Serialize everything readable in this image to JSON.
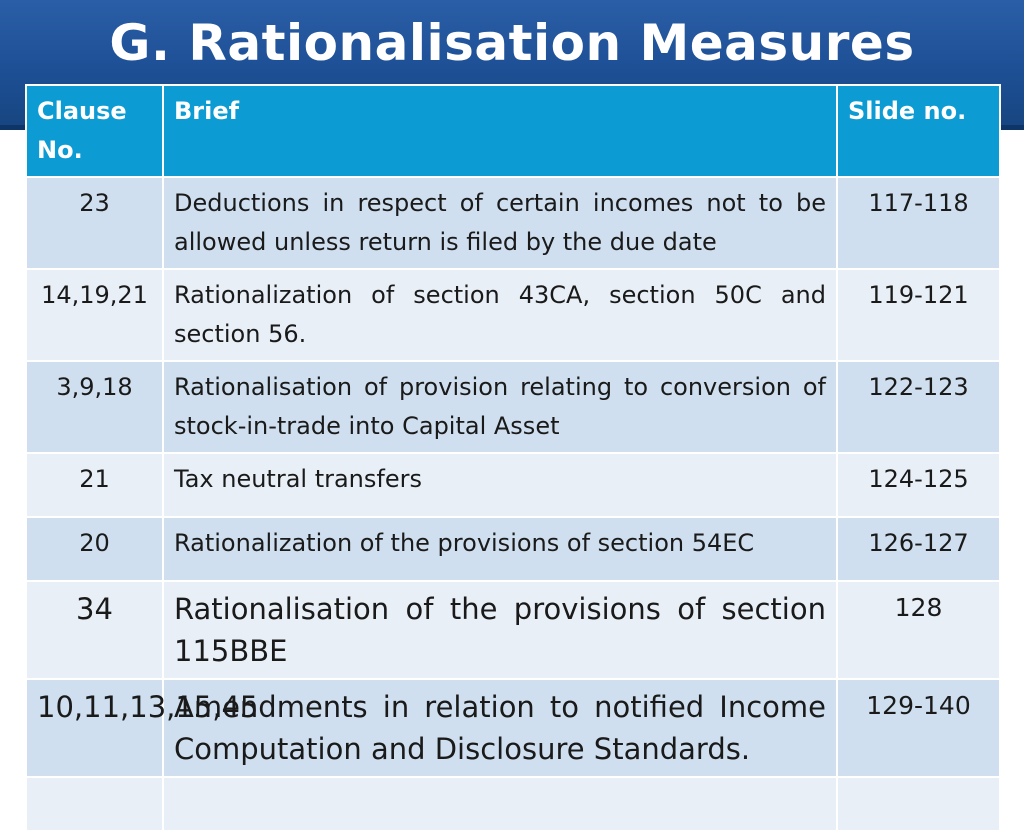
{
  "slide": {
    "title": "G. Rationalisation Measures"
  },
  "table": {
    "headers": {
      "clause": "Clause No.",
      "brief": "Brief",
      "slide": "Slide no."
    },
    "rows": [
      {
        "clause": "23",
        "brief": "Deductions in respect of certain incomes not to be allowed unless return is filed by the due date",
        "slide": "117-118"
      },
      {
        "clause": "14,19,21",
        "brief": "Rationalization of section 43CA, section 50C and section 56.",
        "slide": "119-121"
      },
      {
        "clause": "3,9,18",
        "brief": "Rationalisation of provision relating to conversion of stock-in-trade into Capital Asset",
        "slide": "122-123"
      },
      {
        "clause": "21",
        "brief": "Tax neutral transfers",
        "slide": "124-125"
      },
      {
        "clause": "20",
        "brief": "Rationalization of the provisions of section 54EC",
        "slide": "126-127"
      },
      {
        "clause": "34",
        "brief": "Rationalisation of the provisions of section 115BBE",
        "slide": "128"
      },
      {
        "clause": "10,11,13,15,45",
        "brief": "Amendments in relation to notified Income Computation and Disclosure Standards.",
        "slide": "129-140"
      }
    ]
  },
  "colors": {
    "header_band": "#1d4f95",
    "table_header": "#0d9bd4",
    "row_odd": "#cfdfef",
    "row_even": "#e8eff7"
  }
}
